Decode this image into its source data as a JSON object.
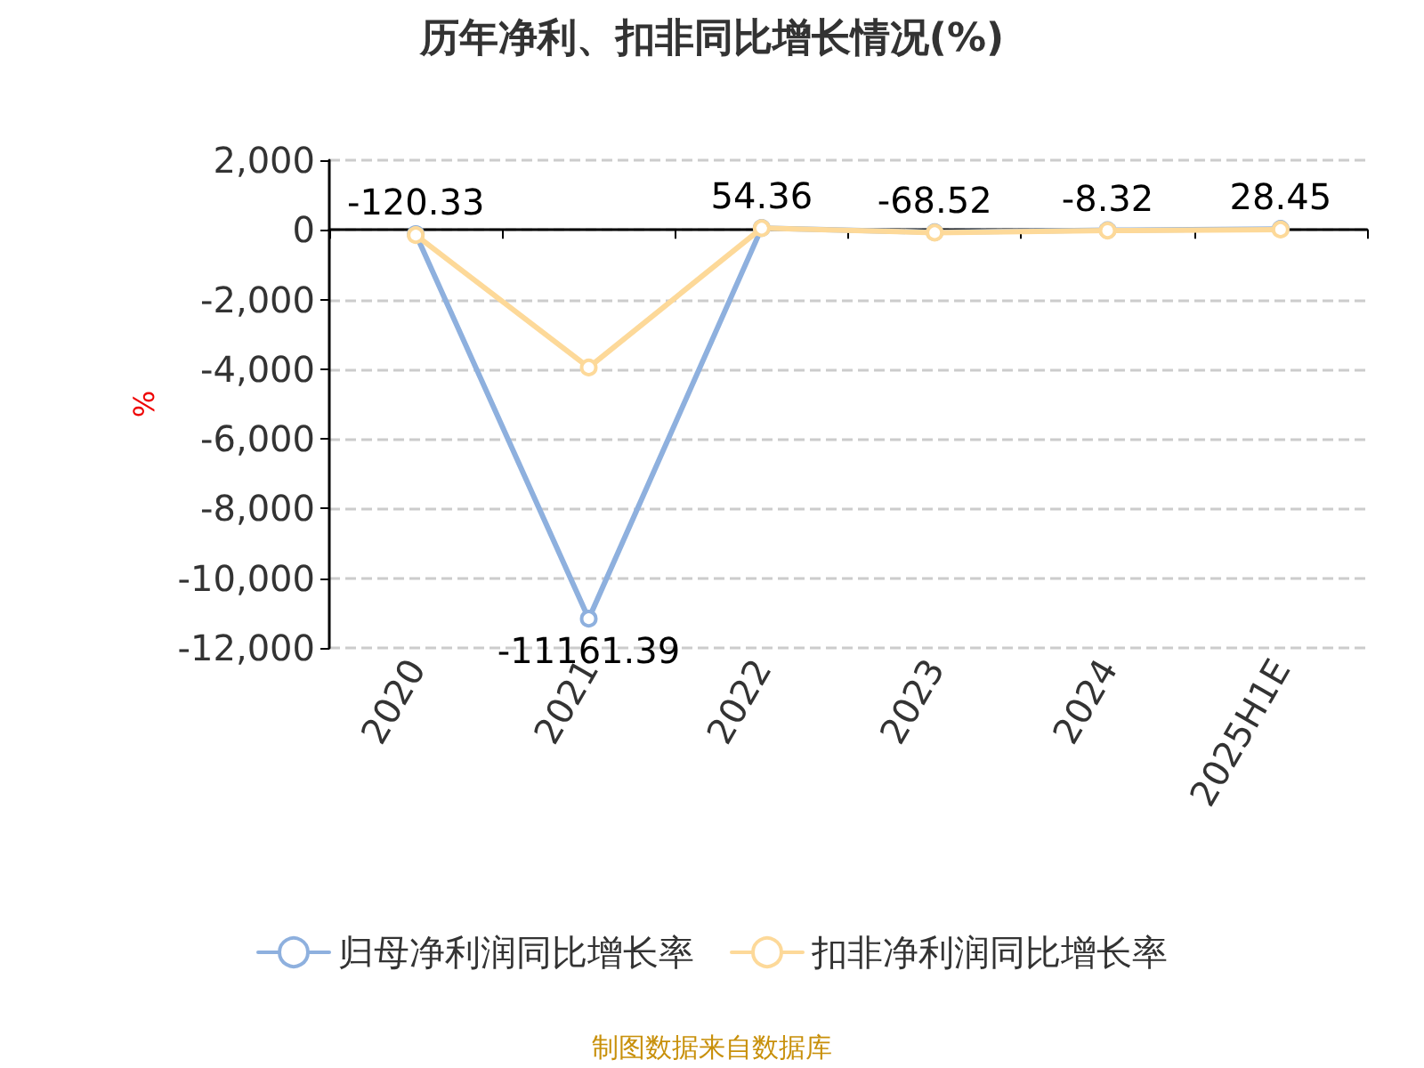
{
  "chart_data": {
    "type": "line",
    "title": "历年净利、扣非同比增长情况(%)",
    "ylabel": "%",
    "categories": [
      "2020",
      "2021",
      "2022",
      "2023",
      "2024",
      "2025H1E"
    ],
    "series": [
      {
        "name": "归母净利润同比增长率",
        "color": "#8eb0de",
        "values": [
          -120.33,
          -11161.39,
          54.36,
          -68.52,
          -8.32,
          28.45
        ],
        "value_labels": [
          "-120.33",
          "-11161.39",
          "54.36",
          "-68.52",
          "-8.32",
          "28.45"
        ]
      },
      {
        "name": "扣非净利润同比增长率",
        "color": "#fdd999",
        "values": [
          -150,
          -3950,
          50,
          -80,
          -20,
          10
        ]
      }
    ],
    "ylim": [
      -12000,
      2000
    ],
    "yticks": [
      {
        "value": -12000,
        "label": "-12,000"
      },
      {
        "value": -10000,
        "label": "-10,000"
      },
      {
        "value": -8000,
        "label": "-8,000"
      },
      {
        "value": -6000,
        "label": "-6,000"
      },
      {
        "value": -4000,
        "label": "-4,000"
      },
      {
        "value": -2000,
        "label": "-2,000"
      },
      {
        "value": 0,
        "label": "0"
      },
      {
        "value": 2000,
        "label": "2,000"
      }
    ],
    "grid": "y",
    "legend": "bottom",
    "marker": "circle",
    "line_style": "solid",
    "annotations": [
      "制图数据来自数据库"
    ]
  }
}
